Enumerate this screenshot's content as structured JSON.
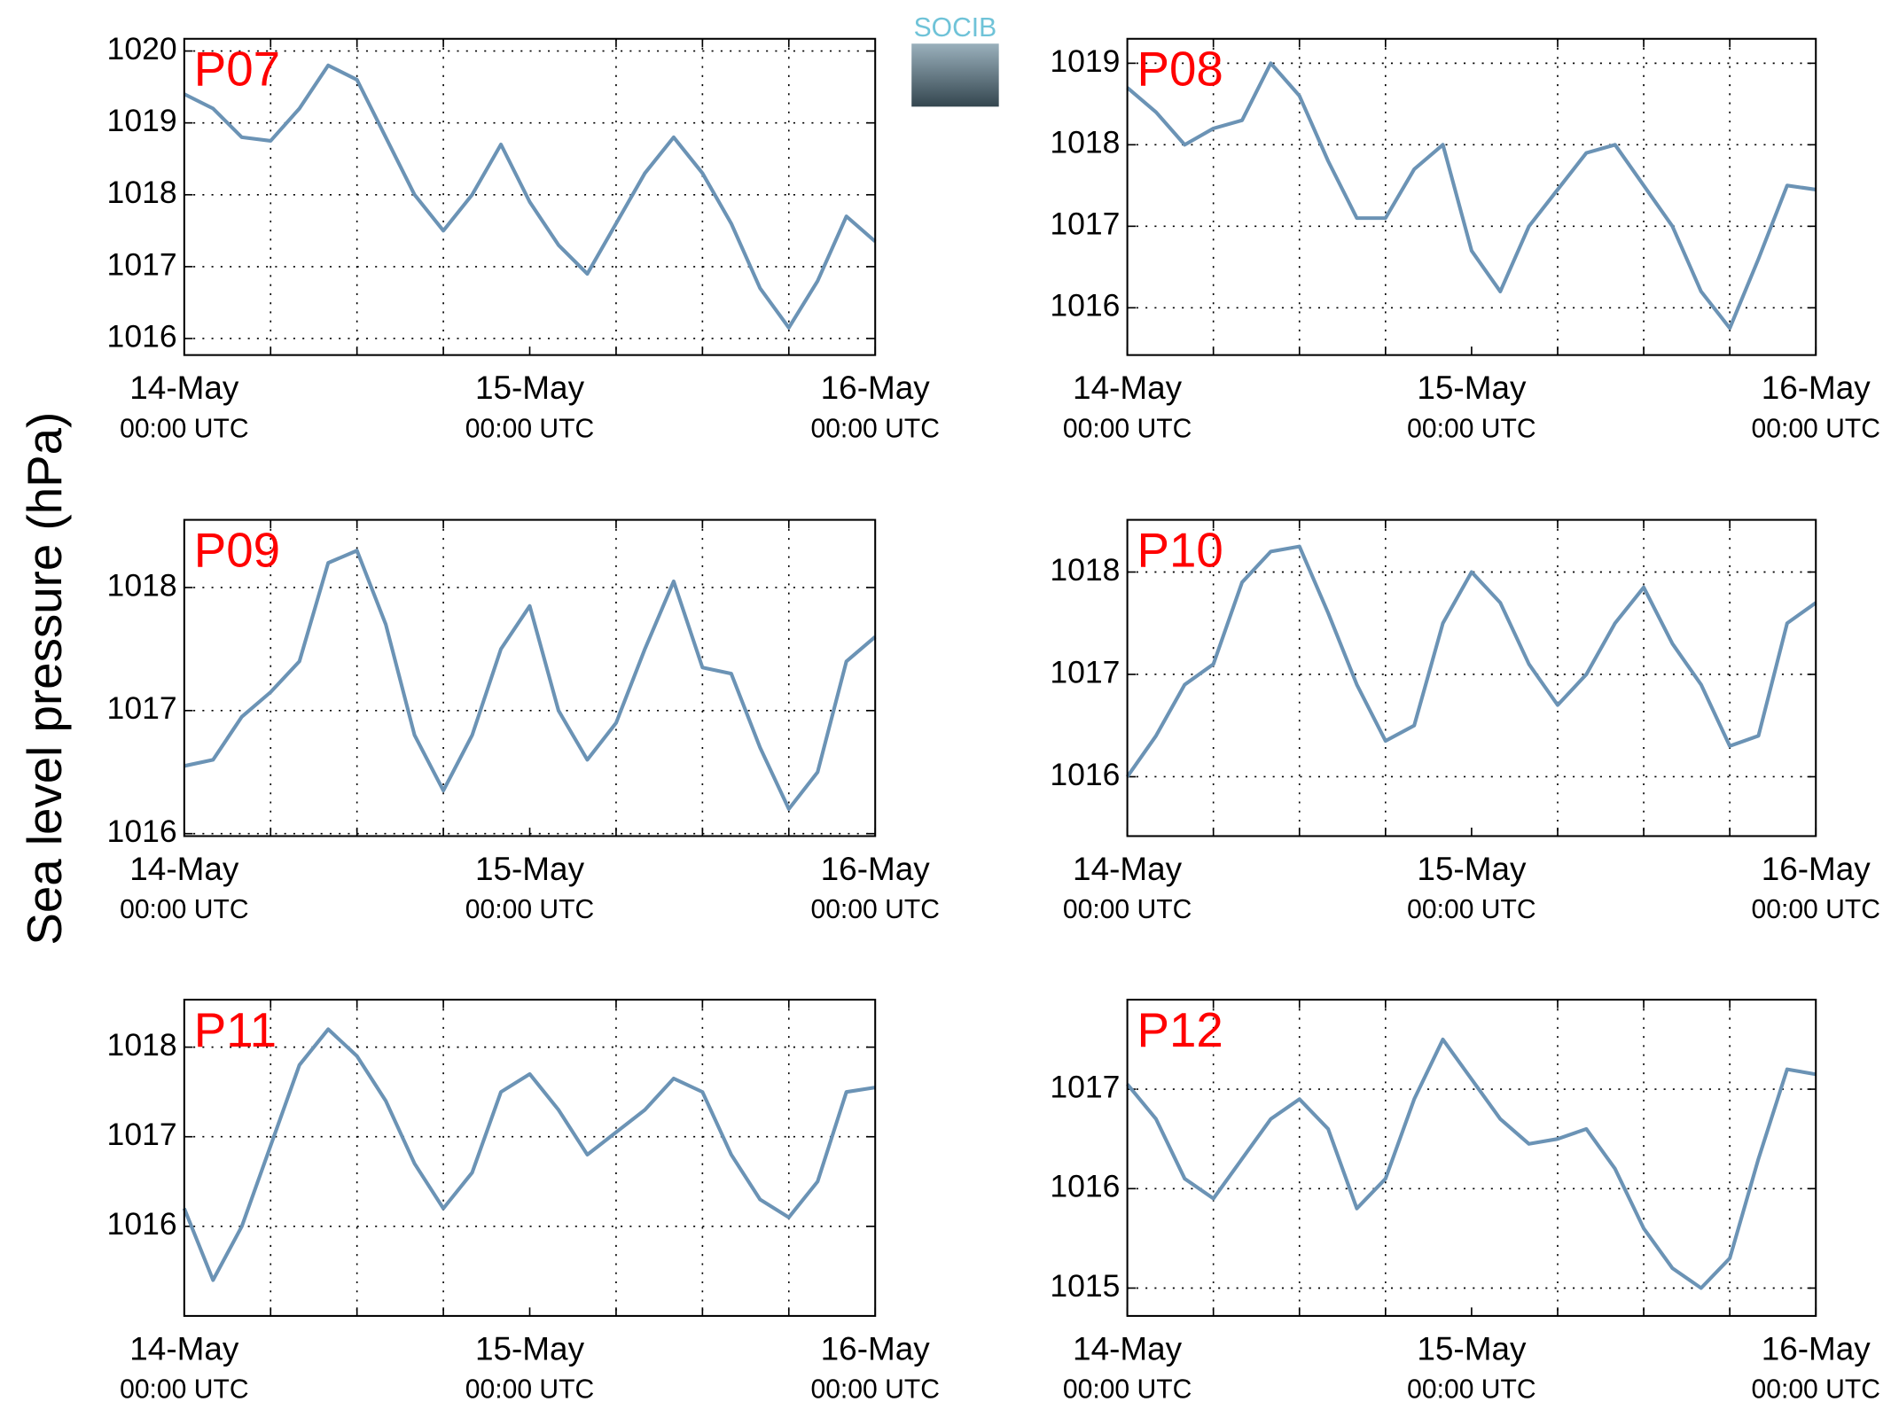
{
  "ylabel": "Sea level pressure (hPa)",
  "logo": "SOCIB",
  "chart_data": [
    {
      "type": "line",
      "title": "P07",
      "color": "#6b93b5",
      "grid": true,
      "x": [
        "14-May 00:00",
        "14-May 02:00",
        "14-May 04:00",
        "14-May 06:00",
        "14-May 08:00",
        "14-May 10:00",
        "14-May 12:00",
        "14-May 14:00",
        "14-May 16:00",
        "14-May 18:00",
        "14-May 20:00",
        "14-May 22:00",
        "15-May 00:00",
        "15-May 02:00",
        "15-May 04:00",
        "15-May 06:00",
        "15-May 08:00",
        "15-May 10:00",
        "15-May 12:00",
        "15-May 14:00",
        "15-May 16:00",
        "15-May 18:00",
        "15-May 20:00",
        "15-May 22:00",
        "16-May 00:00"
      ],
      "values": [
        1019.4,
        1019.2,
        1018.8,
        1018.75,
        1019.2,
        1019.8,
        1019.6,
        1018.8,
        1018.0,
        1017.5,
        1018.0,
        1018.7,
        1017.9,
        1017.3,
        1016.9,
        1017.6,
        1018.3,
        1018.8,
        1018.3,
        1017.6,
        1016.7,
        1016.15,
        1016.8,
        1017.7,
        1017.35
      ],
      "xlim": [
        "14-May 00:00",
        "16-May 00:00"
      ],
      "xticks": [
        {
          "value": "14-May 00:00",
          "label": [
            "14-May",
            "00:00 UTC"
          ]
        },
        {
          "value": "15-May 00:00",
          "label": [
            "15-May",
            "00:00 UTC"
          ]
        },
        {
          "value": "16-May 00:00",
          "label": [
            "16-May",
            "00:00 UTC"
          ]
        }
      ],
      "xminor": [
        "14-May 06:00",
        "14-May 12:00",
        "14-May 18:00",
        "15-May 06:00",
        "15-May 12:00",
        "15-May 18:00"
      ],
      "ylim": [
        1015.77,
        1020.17
      ],
      "yticks": [
        1016,
        1017,
        1018,
        1019,
        1020
      ]
    },
    {
      "type": "line",
      "title": "P08",
      "color": "#6b93b5",
      "grid": true,
      "x": [
        "14-May 00:00",
        "14-May 02:00",
        "14-May 04:00",
        "14-May 06:00",
        "14-May 08:00",
        "14-May 10:00",
        "14-May 12:00",
        "14-May 14:00",
        "14-May 16:00",
        "14-May 18:00",
        "14-May 20:00",
        "14-May 22:00",
        "15-May 00:00",
        "15-May 02:00",
        "15-May 04:00",
        "15-May 06:00",
        "15-May 08:00",
        "15-May 10:00",
        "15-May 12:00",
        "15-May 14:00",
        "15-May 16:00",
        "15-May 18:00",
        "15-May 20:00",
        "15-May 22:00",
        "16-May 00:00"
      ],
      "values": [
        1018.7,
        1018.4,
        1018.0,
        1018.2,
        1018.3,
        1019.0,
        1018.6,
        1017.8,
        1017.1,
        1017.1,
        1017.7,
        1018.0,
        1016.7,
        1016.2,
        1017.0,
        1017.45,
        1017.9,
        1018.0,
        1017.5,
        1017.0,
        1016.2,
        1015.75,
        1016.6,
        1017.5,
        1017.45
      ],
      "xlim": [
        "14-May 00:00",
        "16-May 00:00"
      ],
      "xticks": [
        {
          "value": "14-May 00:00",
          "label": [
            "14-May",
            "00:00 UTC"
          ]
        },
        {
          "value": "15-May 00:00",
          "label": [
            "15-May",
            "00:00 UTC"
          ]
        },
        {
          "value": "16-May 00:00",
          "label": [
            "16-May",
            "00:00 UTC"
          ]
        }
      ],
      "xminor": [
        "14-May 06:00",
        "14-May 12:00",
        "14-May 18:00",
        "15-May 06:00",
        "15-May 12:00",
        "15-May 18:00"
      ],
      "ylim": [
        1015.42,
        1019.3
      ],
      "yticks": [
        1016,
        1017,
        1018,
        1019
      ]
    },
    {
      "type": "line",
      "title": "P09",
      "color": "#6b93b5",
      "grid": true,
      "x": [
        "14-May 00:00",
        "14-May 02:00",
        "14-May 04:00",
        "14-May 06:00",
        "14-May 08:00",
        "14-May 10:00",
        "14-May 12:00",
        "14-May 14:00",
        "14-May 16:00",
        "14-May 18:00",
        "14-May 20:00",
        "14-May 22:00",
        "15-May 00:00",
        "15-May 02:00",
        "15-May 04:00",
        "15-May 06:00",
        "15-May 08:00",
        "15-May 10:00",
        "15-May 12:00",
        "15-May 14:00",
        "15-May 16:00",
        "15-May 18:00",
        "15-May 20:00",
        "15-May 22:00",
        "16-May 00:00"
      ],
      "values": [
        1016.55,
        1016.6,
        1016.95,
        1017.15,
        1017.4,
        1018.2,
        1018.3,
        1017.7,
        1016.8,
        1016.35,
        1016.8,
        1017.5,
        1017.85,
        1017.0,
        1016.6,
        1016.9,
        1017.5,
        1018.05,
        1017.35,
        1017.3,
        1016.7,
        1016.2,
        1016.5,
        1017.4,
        1017.6
      ],
      "xlim": [
        "14-May 00:00",
        "16-May 00:00"
      ],
      "xticks": [
        {
          "value": "14-May 00:00",
          "label": [
            "14-May",
            "00:00 UTC"
          ]
        },
        {
          "value": "15-May 00:00",
          "label": [
            "15-May",
            "00:00 UTC"
          ]
        },
        {
          "value": "16-May 00:00",
          "label": [
            "16-May",
            "00:00 UTC"
          ]
        }
      ],
      "xminor": [
        "14-May 06:00",
        "14-May 12:00",
        "14-May 18:00",
        "15-May 06:00",
        "15-May 12:00",
        "15-May 18:00"
      ],
      "ylim": [
        1015.98,
        1018.55
      ],
      "yticks": [
        1016,
        1017,
        1018
      ]
    },
    {
      "type": "line",
      "title": "P10",
      "color": "#6b93b5",
      "grid": true,
      "x": [
        "14-May 00:00",
        "14-May 02:00",
        "14-May 04:00",
        "14-May 06:00",
        "14-May 08:00",
        "14-May 10:00",
        "14-May 12:00",
        "14-May 14:00",
        "14-May 16:00",
        "14-May 18:00",
        "14-May 20:00",
        "14-May 22:00",
        "15-May 00:00",
        "15-May 02:00",
        "15-May 04:00",
        "15-May 06:00",
        "15-May 08:00",
        "15-May 10:00",
        "15-May 12:00",
        "15-May 14:00",
        "15-May 16:00",
        "15-May 18:00",
        "15-May 20:00",
        "15-May 22:00",
        "16-May 00:00"
      ],
      "values": [
        1016.0,
        1016.4,
        1016.9,
        1017.1,
        1017.9,
        1018.2,
        1018.25,
        1017.6,
        1016.9,
        1016.35,
        1016.5,
        1017.5,
        1018.0,
        1017.7,
        1017.1,
        1016.7,
        1017.0,
        1017.5,
        1017.85,
        1017.3,
        1016.9,
        1016.3,
        1016.4,
        1017.5,
        1017.7
      ],
      "xlim": [
        "14-May 00:00",
        "16-May 00:00"
      ],
      "xticks": [
        {
          "value": "14-May 00:00",
          "label": [
            "14-May",
            "00:00 UTC"
          ]
        },
        {
          "value": "15-May 00:00",
          "label": [
            "15-May",
            "00:00 UTC"
          ]
        },
        {
          "value": "16-May 00:00",
          "label": [
            "16-May",
            "00:00 UTC"
          ]
        }
      ],
      "xminor": [
        "14-May 06:00",
        "14-May 12:00",
        "14-May 18:00",
        "15-May 06:00",
        "15-May 12:00",
        "15-May 18:00"
      ],
      "ylim": [
        1015.42,
        1018.51
      ],
      "yticks": [
        1016,
        1017,
        1018
      ]
    },
    {
      "type": "line",
      "title": "P11",
      "color": "#6b93b5",
      "grid": true,
      "x": [
        "14-May 00:00",
        "14-May 02:00",
        "14-May 04:00",
        "14-May 06:00",
        "14-May 08:00",
        "14-May 10:00",
        "14-May 12:00",
        "14-May 14:00",
        "14-May 16:00",
        "14-May 18:00",
        "14-May 20:00",
        "14-May 22:00",
        "15-May 00:00",
        "15-May 02:00",
        "15-May 04:00",
        "15-May 06:00",
        "15-May 08:00",
        "15-May 10:00",
        "15-May 12:00",
        "15-May 14:00",
        "15-May 16:00",
        "15-May 18:00",
        "15-May 20:00",
        "15-May 22:00",
        "16-May 00:00"
      ],
      "values": [
        1016.2,
        1015.4,
        1016.0,
        1016.9,
        1017.8,
        1018.2,
        1017.9,
        1017.4,
        1016.7,
        1016.2,
        1016.6,
        1017.5,
        1017.7,
        1017.3,
        1016.8,
        1017.05,
        1017.3,
        1017.65,
        1017.5,
        1016.8,
        1016.3,
        1016.1,
        1016.5,
        1017.5,
        1017.55
      ],
      "xlim": [
        "14-May 00:00",
        "16-May 00:00"
      ],
      "xticks": [
        {
          "value": "14-May 00:00",
          "label": [
            "14-May",
            "00:00 UTC"
          ]
        },
        {
          "value": "15-May 00:00",
          "label": [
            "15-May",
            "00:00 UTC"
          ]
        },
        {
          "value": "16-May 00:00",
          "label": [
            "16-May",
            "00:00 UTC"
          ]
        }
      ],
      "xminor": [
        "14-May 06:00",
        "14-May 12:00",
        "14-May 18:00",
        "15-May 06:00",
        "15-May 12:00",
        "15-May 18:00"
      ],
      "ylim": [
        1015.0,
        1018.53
      ],
      "yticks": [
        1016,
        1017,
        1018
      ]
    },
    {
      "type": "line",
      "title": "P12",
      "color": "#6b93b5",
      "grid": true,
      "x": [
        "14-May 00:00",
        "14-May 02:00",
        "14-May 04:00",
        "14-May 06:00",
        "14-May 08:00",
        "14-May 10:00",
        "14-May 12:00",
        "14-May 14:00",
        "14-May 16:00",
        "14-May 18:00",
        "14-May 20:00",
        "14-May 22:00",
        "15-May 00:00",
        "15-May 02:00",
        "15-May 04:00",
        "15-May 06:00",
        "15-May 08:00",
        "15-May 10:00",
        "15-May 12:00",
        "15-May 14:00",
        "15-May 16:00",
        "15-May 18:00",
        "15-May 20:00",
        "15-May 22:00",
        "16-May 00:00"
      ],
      "values": [
        1017.05,
        1016.7,
        1016.1,
        1015.9,
        1016.3,
        1016.7,
        1016.9,
        1016.6,
        1015.8,
        1016.1,
        1016.9,
        1017.5,
        1017.1,
        1016.7,
        1016.45,
        1016.5,
        1016.6,
        1016.2,
        1015.6,
        1015.2,
        1015.0,
        1015.3,
        1016.3,
        1017.2,
        1017.15
      ],
      "xlim": [
        "14-May 00:00",
        "16-May 00:00"
      ],
      "xticks": [
        {
          "value": "14-May 00:00",
          "label": [
            "14-May",
            "00:00 UTC"
          ]
        },
        {
          "value": "15-May 00:00",
          "label": [
            "15-May",
            "00:00 UTC"
          ]
        },
        {
          "value": "16-May 00:00",
          "label": [
            "16-May",
            "00:00 UTC"
          ]
        }
      ],
      "xminor": [
        "14-May 06:00",
        "14-May 12:00",
        "14-May 18:00",
        "15-May 06:00",
        "15-May 12:00",
        "15-May 18:00"
      ],
      "ylim": [
        1014.72,
        1017.9
      ],
      "yticks": [
        1015,
        1016,
        1017
      ]
    }
  ]
}
